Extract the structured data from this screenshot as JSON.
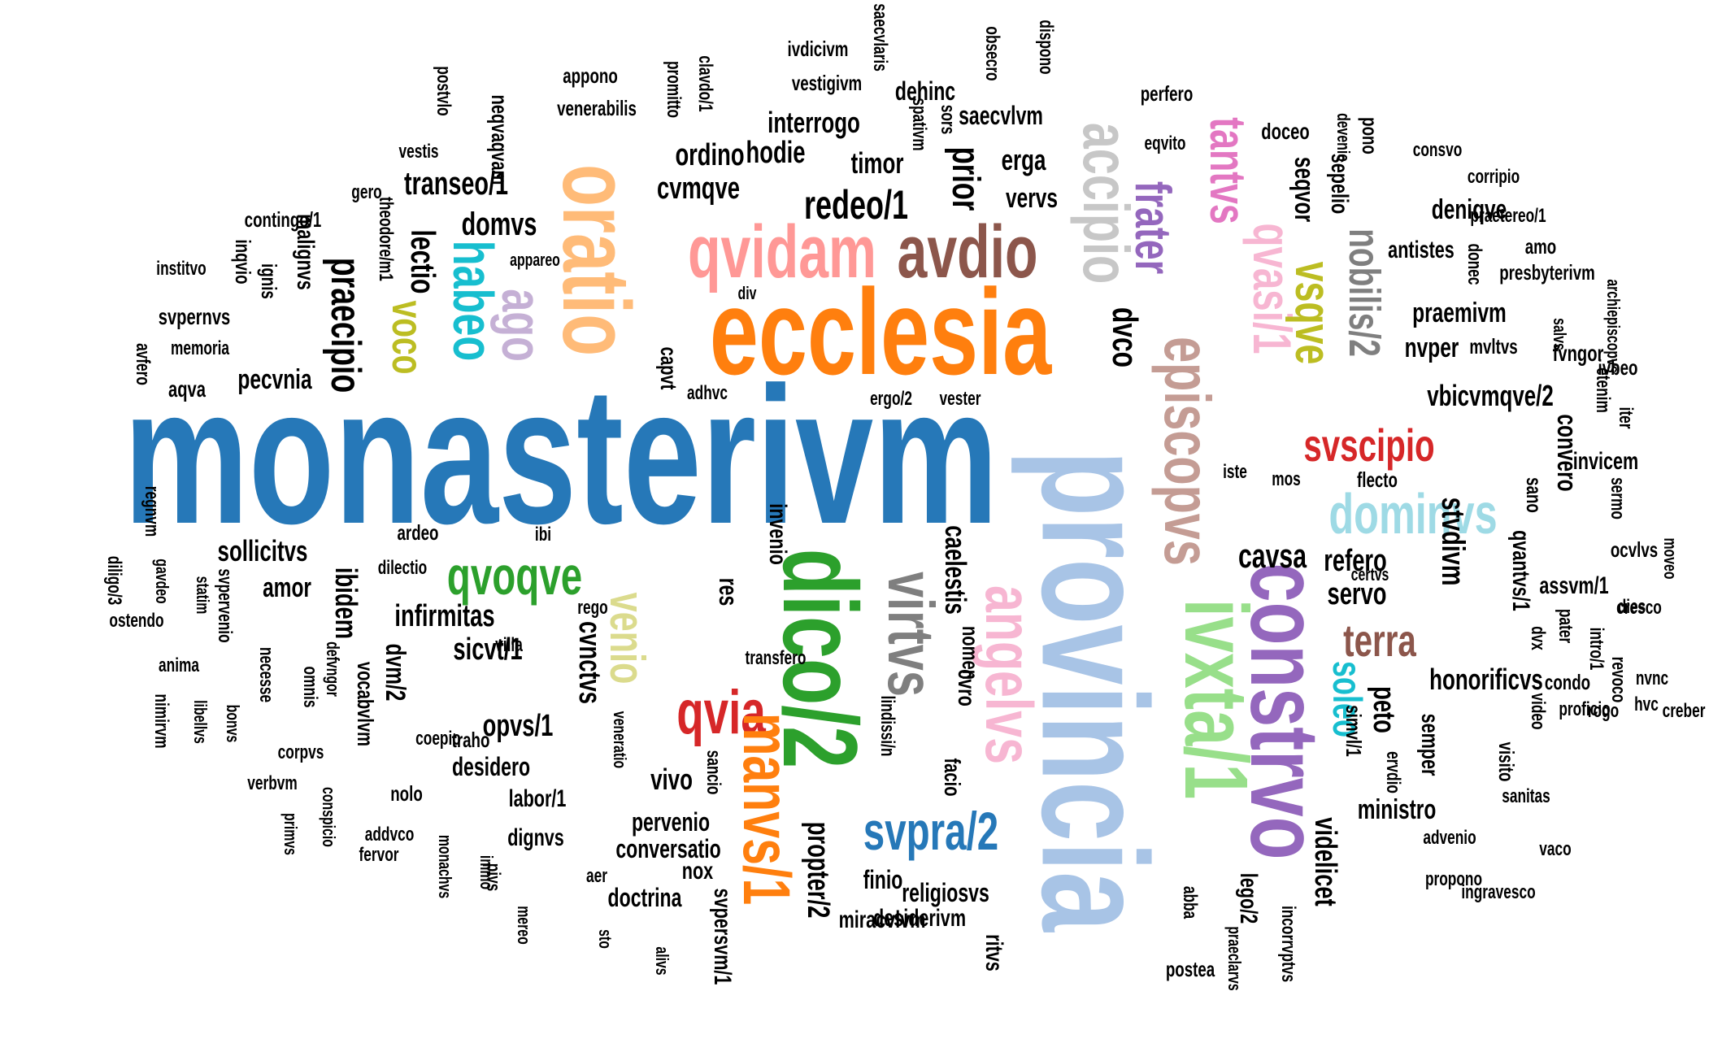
{
  "words": [
    {
      "text": "monasterivm",
      "color": "#2678b8"
    },
    {
      "text": "provincia",
      "color": "#a8c4e6"
    },
    {
      "text": "ecclesia",
      "color": "#ff7f0e"
    },
    {
      "text": "oratio",
      "color": "#ffbb78"
    },
    {
      "text": "qvidam",
      "color": "#ff9896"
    },
    {
      "text": "avdio",
      "color": "#8c564b"
    },
    {
      "text": "accipio",
      "color": "#c7c7c7"
    },
    {
      "text": "episcopvs",
      "color": "#c49c94"
    },
    {
      "text": "frater",
      "color": "#9467bd"
    },
    {
      "text": "tantvs",
      "color": "#e377c2"
    },
    {
      "text": "qvasi/1",
      "color": "#f7b6d2"
    },
    {
      "text": "vsqve",
      "color": "#bcbd22"
    },
    {
      "text": "nobilis/2",
      "color": "#7f7f7f"
    },
    {
      "text": "habeo",
      "color": "#17becf"
    },
    {
      "text": "ago",
      "color": "#c5b0d5"
    },
    {
      "text": "voco",
      "color": "#bcbd22"
    },
    {
      "text": "svscipio",
      "color": "#d62728"
    },
    {
      "text": "dominvs",
      "color": "#9edae5"
    },
    {
      "text": "ivxta/1",
      "color": "#98df8a"
    },
    {
      "text": "constrvo",
      "color": "#9467bd"
    },
    {
      "text": "terra",
      "color": "#8c564b"
    },
    {
      "text": "soleo",
      "color": "#17becf"
    },
    {
      "text": "dico/2",
      "color": "#2ca02c"
    },
    {
      "text": "virtvs",
      "color": "#7f7f7f"
    },
    {
      "text": "angelvs",
      "color": "#f7b6d2"
    },
    {
      "text": "venio",
      "color": "#dbdb8d"
    },
    {
      "text": "qvoqve",
      "color": "#2ca02c"
    },
    {
      "text": "qvia",
      "color": "#d62728"
    },
    {
      "text": "manvs/1",
      "color": "#ff7f0e"
    },
    {
      "text": "svpra/2",
      "color": "#2678b8"
    },
    {
      "text": "praecipio",
      "color": "#000000"
    },
    {
      "text": "lectio",
      "color": "#000000"
    },
    {
      "text": "transeo/1",
      "color": "#000000"
    },
    {
      "text": "domvs",
      "color": "#000000"
    },
    {
      "text": "ordino",
      "color": "#000000"
    },
    {
      "text": "cvmqve",
      "color": "#000000"
    },
    {
      "text": "hodie",
      "color": "#000000"
    },
    {
      "text": "interrogo",
      "color": "#000000"
    },
    {
      "text": "timor",
      "color": "#000000"
    },
    {
      "text": "redeo/1",
      "color": "#000000"
    },
    {
      "text": "prior",
      "color": "#000000"
    },
    {
      "text": "erga",
      "color": "#000000"
    },
    {
      "text": "vervs",
      "color": "#000000"
    },
    {
      "text": "dehinc",
      "color": "#000000"
    },
    {
      "text": "saecvlvm",
      "color": "#000000"
    },
    {
      "text": "dvco",
      "color": "#000000"
    },
    {
      "text": "deniqve",
      "color": "#000000"
    },
    {
      "text": "seqvor",
      "color": "#000000"
    },
    {
      "text": "sepelio",
      "color": "#000000"
    },
    {
      "text": "doceo",
      "color": "#000000"
    },
    {
      "text": "praemivm",
      "color": "#000000"
    },
    {
      "text": "nvper",
      "color": "#000000"
    },
    {
      "text": "vbicvmqve/2",
      "color": "#000000"
    },
    {
      "text": "stvdivm",
      "color": "#000000"
    },
    {
      "text": "cavsa",
      "color": "#000000"
    },
    {
      "text": "refero",
      "color": "#000000"
    },
    {
      "text": "servo",
      "color": "#000000"
    },
    {
      "text": "peto",
      "color": "#000000"
    },
    {
      "text": "honorificvs",
      "color": "#000000"
    },
    {
      "text": "videlicet",
      "color": "#000000"
    },
    {
      "text": "ministro",
      "color": "#000000"
    },
    {
      "text": "semper",
      "color": "#000000"
    },
    {
      "text": "convero",
      "color": "#000000"
    },
    {
      "text": "invicem",
      "color": "#000000"
    },
    {
      "text": "qvantvs/1",
      "color": "#000000"
    },
    {
      "text": "assvm/1",
      "color": "#000000"
    },
    {
      "text": "sollicitvs",
      "color": "#000000"
    },
    {
      "text": "ibidem",
      "color": "#000000"
    },
    {
      "text": "amor",
      "color": "#000000"
    },
    {
      "text": "infirmitas",
      "color": "#000000"
    },
    {
      "text": "dvm/2",
      "color": "#000000"
    },
    {
      "text": "vocabvlvm",
      "color": "#000000"
    },
    {
      "text": "sicvt/1",
      "color": "#000000"
    },
    {
      "text": "opvs/1",
      "color": "#000000"
    },
    {
      "text": "cvnctvs",
      "color": "#000000"
    },
    {
      "text": "invenio",
      "color": "#000000"
    },
    {
      "text": "res",
      "color": "#000000"
    },
    {
      "text": "vivo",
      "color": "#000000"
    },
    {
      "text": "pervenio",
      "color": "#000000"
    },
    {
      "text": "conversatio",
      "color": "#000000"
    },
    {
      "text": "propter/2",
      "color": "#000000"
    },
    {
      "text": "desidero",
      "color": "#000000"
    },
    {
      "text": "labor/1",
      "color": "#000000"
    },
    {
      "text": "dignvs",
      "color": "#000000"
    },
    {
      "text": "doctrina",
      "color": "#000000"
    },
    {
      "text": "nox",
      "color": "#000000"
    },
    {
      "text": "svpersvm/1",
      "color": "#000000"
    },
    {
      "text": "finio",
      "color": "#000000"
    },
    {
      "text": "religiosvs",
      "color": "#000000"
    },
    {
      "text": "miracvlvm",
      "color": "#000000"
    },
    {
      "text": "desiderivm",
      "color": "#000000"
    },
    {
      "text": "caelestis",
      "color": "#000000"
    },
    {
      "text": "cvro",
      "color": "#000000"
    },
    {
      "text": "facio",
      "color": "#000000"
    },
    {
      "text": "nomen",
      "color": "#000000"
    },
    {
      "text": "ritvs",
      "color": "#000000"
    },
    {
      "text": "lego/2",
      "color": "#000000"
    },
    {
      "text": "postvlo",
      "color": "#000000"
    },
    {
      "text": "appono",
      "color": "#000000"
    },
    {
      "text": "venerabilis",
      "color": "#000000"
    },
    {
      "text": "promitto",
      "color": "#000000"
    },
    {
      "text": "clavdo/1",
      "color": "#000000"
    },
    {
      "text": "ivdicivm",
      "color": "#000000"
    },
    {
      "text": "vestigivm",
      "color": "#000000"
    },
    {
      "text": "saecvlaris",
      "color": "#000000"
    },
    {
      "text": "obsecro",
      "color": "#000000"
    },
    {
      "text": "dispono",
      "color": "#000000"
    },
    {
      "text": "spativm",
      "color": "#000000"
    },
    {
      "text": "sors",
      "color": "#000000"
    },
    {
      "text": "perfero",
      "color": "#000000"
    },
    {
      "text": "eqvito",
      "color": "#000000"
    },
    {
      "text": "pono",
      "color": "#000000"
    },
    {
      "text": "devenio",
      "color": "#000000"
    },
    {
      "text": "consvo",
      "color": "#000000"
    },
    {
      "text": "corripio",
      "color": "#000000"
    },
    {
      "text": "praetereo/1",
      "color": "#000000"
    },
    {
      "text": "antistes",
      "color": "#000000"
    },
    {
      "text": "donec",
      "color": "#000000"
    },
    {
      "text": "amo",
      "color": "#000000"
    },
    {
      "text": "presbyterivm",
      "color": "#000000"
    },
    {
      "text": "mvltvs",
      "color": "#000000"
    },
    {
      "text": "fvngor",
      "color": "#000000"
    },
    {
      "text": "salvs",
      "color": "#000000"
    },
    {
      "text": "archiepiscopvs",
      "color": "#000000"
    },
    {
      "text": "ivbeo",
      "color": "#000000"
    },
    {
      "text": "etenim",
      "color": "#000000"
    },
    {
      "text": "iter",
      "color": "#000000"
    },
    {
      "text": "vestis",
      "color": "#000000"
    },
    {
      "text": "neqvaqvam",
      "color": "#000000"
    },
    {
      "text": "gero",
      "color": "#000000"
    },
    {
      "text": "contingo/1",
      "color": "#000000"
    },
    {
      "text": "malignvs",
      "color": "#000000"
    },
    {
      "text": "theodore/m1",
      "color": "#000000"
    },
    {
      "text": "inqvio",
      "color": "#000000"
    },
    {
      "text": "ignis",
      "color": "#000000"
    },
    {
      "text": "institvo",
      "color": "#000000"
    },
    {
      "text": "appareo",
      "color": "#000000"
    },
    {
      "text": "div",
      "color": "#000000"
    },
    {
      "text": "svpernvs",
      "color": "#000000"
    },
    {
      "text": "memoria",
      "color": "#000000"
    },
    {
      "text": "pecvnia",
      "color": "#000000"
    },
    {
      "text": "avfero",
      "color": "#000000"
    },
    {
      "text": "aqva",
      "color": "#000000"
    },
    {
      "text": "capvt",
      "color": "#000000"
    },
    {
      "text": "adhvc",
      "color": "#000000"
    },
    {
      "text": "ergo/2",
      "color": "#000000"
    },
    {
      "text": "vester",
      "color": "#000000"
    },
    {
      "text": "iste",
      "color": "#000000"
    },
    {
      "text": "mos",
      "color": "#000000"
    },
    {
      "text": "flecto",
      "color": "#000000"
    },
    {
      "text": "sano",
      "color": "#000000"
    },
    {
      "text": "sermo",
      "color": "#000000"
    },
    {
      "text": "ocvlvs",
      "color": "#000000"
    },
    {
      "text": "moveo",
      "color": "#000000"
    },
    {
      "text": "certvs",
      "color": "#000000"
    },
    {
      "text": "dvx",
      "color": "#000000"
    },
    {
      "text": "dies",
      "color": "#000000"
    },
    {
      "text": "pater",
      "color": "#000000"
    },
    {
      "text": "intro/1",
      "color": "#000000"
    },
    {
      "text": "cresco",
      "color": "#000000"
    },
    {
      "text": "condo",
      "color": "#000000"
    },
    {
      "text": "revoco",
      "color": "#000000"
    },
    {
      "text": "nvnc",
      "color": "#000000"
    },
    {
      "text": "rogo",
      "color": "#000000"
    },
    {
      "text": "hvc",
      "color": "#000000"
    },
    {
      "text": "video",
      "color": "#000000"
    },
    {
      "text": "proficio",
      "color": "#000000"
    },
    {
      "text": "creber",
      "color": "#000000"
    },
    {
      "text": "simvl/1",
      "color": "#000000"
    },
    {
      "text": "ervdio",
      "color": "#000000"
    },
    {
      "text": "visito",
      "color": "#000000"
    },
    {
      "text": "sanitas",
      "color": "#000000"
    },
    {
      "text": "advenio",
      "color": "#000000"
    },
    {
      "text": "vaco",
      "color": "#000000"
    },
    {
      "text": "propono",
      "color": "#000000"
    },
    {
      "text": "ingravesco",
      "color": "#000000"
    },
    {
      "text": "abba",
      "color": "#000000"
    },
    {
      "text": "praeclarvs",
      "color": "#000000"
    },
    {
      "text": "incorrvptvs",
      "color": "#000000"
    },
    {
      "text": "postea",
      "color": "#000000"
    },
    {
      "text": "regnvm",
      "color": "#000000"
    },
    {
      "text": "diligo/3",
      "color": "#000000"
    },
    {
      "text": "gavdeo",
      "color": "#000000"
    },
    {
      "text": "statim",
      "color": "#000000"
    },
    {
      "text": "svpervenio",
      "color": "#000000"
    },
    {
      "text": "ostendo",
      "color": "#000000"
    },
    {
      "text": "anima",
      "color": "#000000"
    },
    {
      "text": "necesse",
      "color": "#000000"
    },
    {
      "text": "omnis",
      "color": "#000000"
    },
    {
      "text": "defvngor",
      "color": "#000000"
    },
    {
      "text": "nimirvm",
      "color": "#000000"
    },
    {
      "text": "libellvs",
      "color": "#000000"
    },
    {
      "text": "bonvs",
      "color": "#000000"
    },
    {
      "text": "corpvs",
      "color": "#000000"
    },
    {
      "text": "verbvm",
      "color": "#000000"
    },
    {
      "text": "primvs",
      "color": "#000000"
    },
    {
      "text": "conspicio",
      "color": "#000000"
    },
    {
      "text": "nolo",
      "color": "#000000"
    },
    {
      "text": "addvco",
      "color": "#000000"
    },
    {
      "text": "fervor",
      "color": "#000000"
    },
    {
      "text": "monachvs",
      "color": "#000000"
    },
    {
      "text": "immo",
      "color": "#000000"
    },
    {
      "text": "pivs",
      "color": "#000000"
    },
    {
      "text": "mereo",
      "color": "#000000"
    },
    {
      "text": "ardeo",
      "color": "#000000"
    },
    {
      "text": "dilectio",
      "color": "#000000"
    },
    {
      "text": "ibi",
      "color": "#000000"
    },
    {
      "text": "rego",
      "color": "#000000"
    },
    {
      "text": "villa",
      "color": "#000000"
    },
    {
      "text": "traho",
      "color": "#000000"
    },
    {
      "text": "coepio",
      "color": "#000000"
    },
    {
      "text": "transfero",
      "color": "#000000"
    },
    {
      "text": "veneratio",
      "color": "#000000"
    },
    {
      "text": "sancio",
      "color": "#000000"
    },
    {
      "text": "aer",
      "color": "#000000"
    },
    {
      "text": "sto",
      "color": "#000000"
    },
    {
      "text": "alivs",
      "color": "#000000"
    },
    {
      "text": "lindissi/n",
      "color": "#000000"
    }
  ]
}
